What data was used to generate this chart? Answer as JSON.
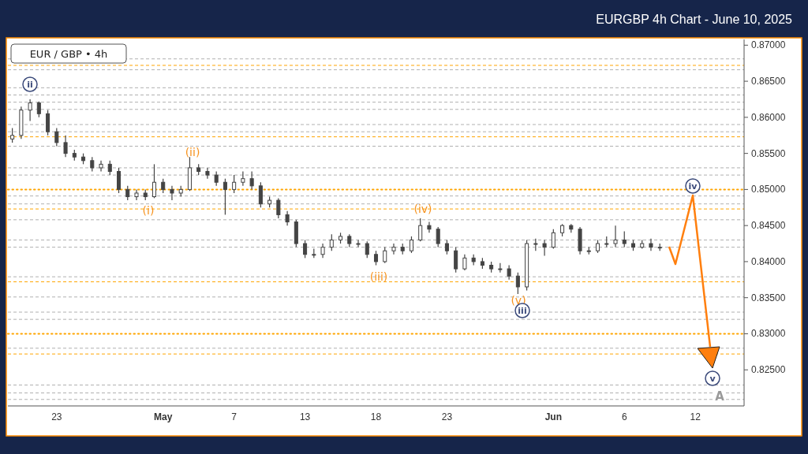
{
  "chart_data": {
    "type": "candlestick",
    "title": "EURGBP 4h Chart - June 10, 2025",
    "subtitle": "EUR / GBP • 4h",
    "categories": [
      null,
      null,
      null,
      null,
      null,
      "23",
      null,
      null,
      null,
      null,
      null,
      null,
      null,
      null,
      null,
      null,
      null,
      "May",
      null,
      null,
      null,
      null,
      null,
      null,
      null,
      "7",
      null,
      null,
      null,
      null,
      null,
      null,
      null,
      "13",
      null,
      null,
      null,
      null,
      null,
      null,
      null,
      "18",
      null,
      null,
      null,
      null,
      null,
      null,
      null,
      "23",
      null,
      null,
      null,
      null,
      null,
      null,
      null,
      null,
      null,
      null,
      null,
      "Jun",
      null,
      null,
      null,
      null,
      null,
      null,
      null,
      "6",
      null,
      null,
      null,
      null,
      null,
      null,
      null,
      "12",
      null,
      null,
      null,
      null,
      null
    ],
    "color": "#444444",
    "ohlc": [
      [
        0.857,
        0.8585,
        0.8565,
        0.8575
      ],
      [
        0.8575,
        0.8615,
        0.857,
        0.861
      ],
      [
        0.861,
        0.8625,
        0.8595,
        0.862
      ],
      [
        0.862,
        0.8622,
        0.86,
        0.8605
      ],
      [
        0.8605,
        0.861,
        0.8575,
        0.858
      ],
      [
        0.858,
        0.8585,
        0.856,
        0.8565
      ],
      [
        0.8565,
        0.8575,
        0.8545,
        0.855
      ],
      [
        0.855,
        0.8555,
        0.854,
        0.8545
      ],
      [
        0.8545,
        0.855,
        0.8535,
        0.854
      ],
      [
        0.854,
        0.8545,
        0.8525,
        0.853
      ],
      [
        0.853,
        0.854,
        0.8525,
        0.8535
      ],
      [
        0.8535,
        0.854,
        0.852,
        0.8525
      ],
      [
        0.8525,
        0.853,
        0.8495,
        0.85
      ],
      [
        0.85,
        0.8505,
        0.8485,
        0.849
      ],
      [
        0.849,
        0.85,
        0.8485,
        0.8495
      ],
      [
        0.8495,
        0.85,
        0.8485,
        0.849
      ],
      [
        0.849,
        0.8535,
        0.8488,
        0.851
      ],
      [
        0.851,
        0.8515,
        0.8495,
        0.85
      ],
      [
        0.85,
        0.8505,
        0.8485,
        0.8495
      ],
      [
        0.8495,
        0.8505,
        0.849,
        0.85
      ],
      [
        0.85,
        0.8545,
        0.8498,
        0.853
      ],
      [
        0.853,
        0.8535,
        0.852,
        0.8525
      ],
      [
        0.8525,
        0.853,
        0.8515,
        0.852
      ],
      [
        0.852,
        0.8525,
        0.8505,
        0.851
      ],
      [
        0.851,
        0.8515,
        0.8465,
        0.85
      ],
      [
        0.85,
        0.852,
        0.8495,
        0.851
      ],
      [
        0.851,
        0.8525,
        0.8505,
        0.8515
      ],
      [
        0.8515,
        0.8525,
        0.85,
        0.8505
      ],
      [
        0.8505,
        0.851,
        0.8475,
        0.848
      ],
      [
        0.848,
        0.849,
        0.8475,
        0.8485
      ],
      [
        0.8485,
        0.8488,
        0.846,
        0.8465
      ],
      [
        0.8465,
        0.847,
        0.845,
        0.8455
      ],
      [
        0.8455,
        0.8458,
        0.842,
        0.8425
      ],
      [
        0.8425,
        0.843,
        0.8405,
        0.841
      ],
      [
        0.841,
        0.8418,
        0.8405,
        0.841
      ],
      [
        0.841,
        0.8425,
        0.8405,
        0.842
      ],
      [
        0.842,
        0.8438,
        0.8415,
        0.843
      ],
      [
        0.843,
        0.844,
        0.8425,
        0.8435
      ],
      [
        0.8435,
        0.8438,
        0.842,
        0.8425
      ],
      [
        0.8425,
        0.843,
        0.842,
        0.8425
      ],
      [
        0.8425,
        0.8428,
        0.8405,
        0.841
      ],
      [
        0.841,
        0.8415,
        0.8395,
        0.84
      ],
      [
        0.84,
        0.842,
        0.8398,
        0.8415
      ],
      [
        0.8415,
        0.8425,
        0.841,
        0.842
      ],
      [
        0.842,
        0.8425,
        0.841,
        0.8415
      ],
      [
        0.8415,
        0.8435,
        0.8412,
        0.843
      ],
      [
        0.843,
        0.846,
        0.8428,
        0.845
      ],
      [
        0.845,
        0.8455,
        0.844,
        0.8445
      ],
      [
        0.8445,
        0.8448,
        0.842,
        0.8425
      ],
      [
        0.8425,
        0.843,
        0.841,
        0.8415
      ],
      [
        0.8415,
        0.842,
        0.8385,
        0.839
      ],
      [
        0.839,
        0.841,
        0.8388,
        0.8405
      ],
      [
        0.8405,
        0.841,
        0.8395,
        0.84
      ],
      [
        0.84,
        0.8405,
        0.839,
        0.8395
      ],
      [
        0.8395,
        0.84,
        0.8385,
        0.839
      ],
      [
        0.839,
        0.8398,
        0.8385,
        0.839
      ],
      [
        0.839,
        0.8395,
        0.8375,
        0.838
      ],
      [
        0.838,
        0.8385,
        0.8355,
        0.8365
      ],
      [
        0.8365,
        0.843,
        0.836,
        0.8425
      ],
      [
        0.8425,
        0.8432,
        0.8415,
        0.8425
      ],
      [
        0.8425,
        0.843,
        0.8408,
        0.842
      ],
      [
        0.842,
        0.8445,
        0.8418,
        0.844
      ],
      [
        0.844,
        0.8452,
        0.8435,
        0.845
      ],
      [
        0.845,
        0.8452,
        0.844,
        0.8445
      ],
      [
        0.8445,
        0.8448,
        0.841,
        0.8415
      ],
      [
        0.8415,
        0.842,
        0.841,
        0.8415
      ],
      [
        0.8415,
        0.843,
        0.8412,
        0.8425
      ],
      [
        0.8425,
        0.8435,
        0.842,
        0.8425
      ],
      [
        0.8425,
        0.845,
        0.842,
        0.843
      ],
      [
        0.843,
        0.8442,
        0.842,
        0.8425
      ],
      [
        0.8425,
        0.843,
        0.8415,
        0.842
      ],
      [
        0.842,
        0.843,
        0.8418,
        0.8425
      ],
      [
        0.8425,
        0.8432,
        0.8415,
        0.842
      ],
      [
        0.842,
        0.8425,
        0.8415,
        0.842
      ],
      null,
      null,
      null,
      null,
      null,
      null,
      null,
      null,
      null
    ],
    "annotations": [
      "(i)",
      "(ii)",
      "(iii)",
      "(iv)",
      "(v)",
      "ii",
      "iii",
      "iv",
      "v",
      "A"
    ],
    "ref_lines": [
      {
        "axis": "y",
        "value": 0.8672,
        "color": "#ffa500",
        "line_style": "dashed"
      },
      {
        "axis": "y",
        "value": 0.8573,
        "color": "#ffa500",
        "line_style": "dashed"
      },
      {
        "axis": "y",
        "value": 0.8473,
        "color": "#ffa500",
        "line_style": "dashed"
      },
      {
        "axis": "y",
        "value": 0.8372,
        "color": "#ffa500",
        "line_style": "dashed"
      },
      {
        "axis": "y",
        "value": 0.8272,
        "color": "#ffa500",
        "line_style": "dashed"
      },
      {
        "axis": "y",
        "value": 0.85,
        "color": "#ffa500",
        "line_style": "dotted"
      },
      {
        "axis": "y",
        "value": 0.83,
        "color": "#ffa500",
        "line_style": "dotted"
      },
      {
        "axis": "y",
        "value": 0.8681,
        "color": "#b0b0b0",
        "line_style": "dashed"
      },
      {
        "axis": "y",
        "value": 0.8666,
        "color": "#b0b0b0",
        "line_style": "dashed"
      },
      {
        "axis": "y",
        "value": 0.8641,
        "color": "#b0b0b0",
        "line_style": "dashed"
      },
      {
        "axis": "y",
        "value": 0.8631,
        "color": "#b0b0b0",
        "line_style": "dashed"
      },
      {
        "axis": "y",
        "value": 0.8621,
        "color": "#b0b0b0",
        "line_style": "dashed"
      },
      {
        "axis": "y",
        "value": 0.8611,
        "color": "#b0b0b0",
        "line_style": "dashed"
      },
      {
        "axis": "y",
        "value": 0.859,
        "color": "#b0b0b0",
        "line_style": "dashed"
      },
      {
        "axis": "y",
        "value": 0.858,
        "color": "#b0b0b0",
        "line_style": "dashed"
      },
      {
        "axis": "y",
        "value": 0.856,
        "color": "#b0b0b0",
        "line_style": "dashed"
      },
      {
        "axis": "y",
        "value": 0.853,
        "color": "#b0b0b0",
        "line_style": "dashed"
      },
      {
        "axis": "y",
        "value": 0.852,
        "color": "#b0b0b0",
        "line_style": "dashed"
      },
      {
        "axis": "y",
        "value": 0.8491,
        "color": "#b0b0b0",
        "line_style": "dashed"
      },
      {
        "axis": "y",
        "value": 0.848,
        "color": "#b0b0b0",
        "line_style": "dashed"
      },
      {
        "axis": "y",
        "value": 0.8458,
        "color": "#b0b0b0",
        "line_style": "dashed"
      },
      {
        "axis": "y",
        "value": 0.843,
        "color": "#b0b0b0",
        "line_style": "dashed"
      },
      {
        "axis": "y",
        "value": 0.842,
        "color": "#b0b0b0",
        "line_style": "dashed"
      },
      {
        "axis": "y",
        "value": 0.8379,
        "color": "#b0b0b0",
        "line_style": "dashed"
      },
      {
        "axis": "y",
        "value": 0.8351,
        "color": "#b0b0b0",
        "line_style": "dashed"
      },
      {
        "axis": "y",
        "value": 0.833,
        "color": "#b0b0b0",
        "line_style": "dashed"
      },
      {
        "axis": "y",
        "value": 0.832,
        "color": "#b0b0b0",
        "line_style": "dashed"
      },
      {
        "axis": "y",
        "value": 0.828,
        "color": "#b0b0b0",
        "line_style": "dashed"
      },
      {
        "axis": "y",
        "value": 0.8229,
        "color": "#b0b0b0",
        "line_style": "dashed"
      },
      {
        "axis": "y",
        "value": 0.8218,
        "color": "#b0b0b0",
        "line_style": "dashed"
      },
      {
        "axis": "y",
        "value": 0.8209,
        "color": "#b0b0b0",
        "line_style": "dashed"
      }
    ],
    "ylim": [
      0.82,
      0.8708
    ],
    "yticks": [
      {
        "value": 0.825,
        "label": "0.82500"
      },
      {
        "value": 0.83,
        "label": "0.83000"
      },
      {
        "value": 0.835,
        "label": "0.83500"
      },
      {
        "value": 0.84,
        "label": "0.84000"
      },
      {
        "value": 0.845,
        "label": "0.84500"
      },
      {
        "value": 0.85,
        "label": "0.85000"
      },
      {
        "value": 0.855,
        "label": "0.85500"
      },
      {
        "value": 0.86,
        "label": "0.86000"
      },
      {
        "value": 0.865,
        "label": "0.86500"
      },
      {
        "value": 0.87,
        "label": "0.87000"
      }
    ],
    "grid": false
  }
}
